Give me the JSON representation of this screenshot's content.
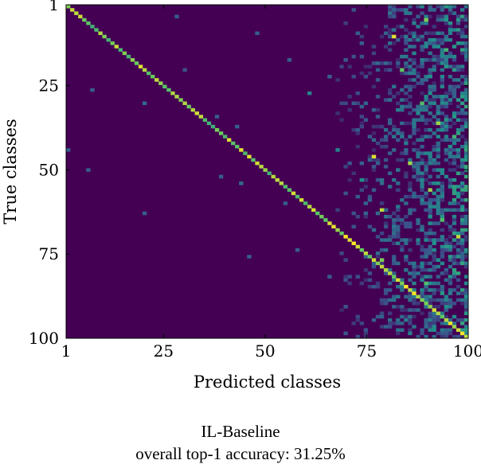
{
  "chart_data": {
    "type": "heatmap",
    "title": "",
    "xlabel": "Predicted classes",
    "ylabel": "True classes",
    "x_ticks": [
      1,
      25,
      50,
      75,
      100
    ],
    "y_ticks": [
      1,
      25,
      50,
      75,
      100
    ],
    "x_range": [
      1,
      100
    ],
    "y_range": [
      1,
      100
    ],
    "n_classes": 100,
    "colormap": "viridis",
    "colormap_stops": [
      "#440154",
      "#3b528b",
      "#21918c",
      "#5ec962",
      "#fde725"
    ],
    "diagonal_intensity": 0.8,
    "background_value": 0.0,
    "notable_cells": [
      {
        "true": 10,
        "pred": 82,
        "value": 0.95
      },
      {
        "true": 46,
        "pred": 77,
        "value": 0.95
      },
      {
        "true": 62,
        "pred": 79,
        "value": 0.9
      },
      {
        "true": 70,
        "pred": 98,
        "value": 0.9
      },
      {
        "true": 48,
        "pred": 86,
        "value": 0.85
      },
      {
        "true": 36,
        "pred": 93,
        "value": 0.85
      },
      {
        "true": 5,
        "pred": 90,
        "value": 0.8
      },
      {
        "true": 56,
        "pred": 91,
        "value": 0.85
      },
      {
        "true": 77,
        "pred": 79,
        "value": 0.8
      },
      {
        "true": 20,
        "pred": 84,
        "value": 0.75
      },
      {
        "true": 30,
        "pred": 89,
        "value": 0.7
      },
      {
        "true": 65,
        "pred": 94,
        "value": 0.7
      },
      {
        "true": 84,
        "pred": 90,
        "value": 0.7
      },
      {
        "true": 40,
        "pred": 97,
        "value": 0.65
      },
      {
        "true": 14,
        "pred": 95,
        "value": 0.65
      },
      {
        "true": 27,
        "pred": 61,
        "value": 0.45
      },
      {
        "true": 53,
        "pred": 74,
        "value": 0.5
      },
      {
        "true": 44,
        "pred": 68,
        "value": 0.45
      }
    ],
    "sparse_cells_left": [
      {
        "true": 4,
        "pred": 28,
        "value": 0.3
      },
      {
        "true": 9,
        "pred": 48,
        "value": 0.3
      },
      {
        "true": 26,
        "pred": 7,
        "value": 0.3
      },
      {
        "true": 30,
        "pred": 20,
        "value": 0.35
      },
      {
        "true": 37,
        "pred": 43,
        "value": 0.3
      },
      {
        "true": 44,
        "pred": 1,
        "value": 0.3
      },
      {
        "true": 50,
        "pred": 6,
        "value": 0.3
      },
      {
        "true": 54,
        "pred": 44,
        "value": 0.35
      },
      {
        "true": 52,
        "pred": 39,
        "value": 0.3
      },
      {
        "true": 63,
        "pred": 20,
        "value": 0.3
      },
      {
        "true": 76,
        "pred": 46,
        "value": 0.3
      },
      {
        "true": 74,
        "pred": 58,
        "value": 0.3
      },
      {
        "true": 82,
        "pred": 66,
        "value": 0.3
      },
      {
        "true": 20,
        "pred": 30,
        "value": 0.25
      },
      {
        "true": 34,
        "pred": 38,
        "value": 0.3
      },
      {
        "true": 60,
        "pred": 55,
        "value": 0.3
      },
      {
        "true": 17,
        "pred": 56,
        "value": 0.3
      },
      {
        "true": 22,
        "pred": 66,
        "value": 0.3
      }
    ],
    "noise_region": {
      "pred_min": 68,
      "pred_max": 100,
      "density_start": 0.05,
      "density_end": 0.6
    }
  },
  "caption": {
    "title": "IL-Baseline",
    "subtitle": "overall top-1 accuracy: 31.25%"
  }
}
